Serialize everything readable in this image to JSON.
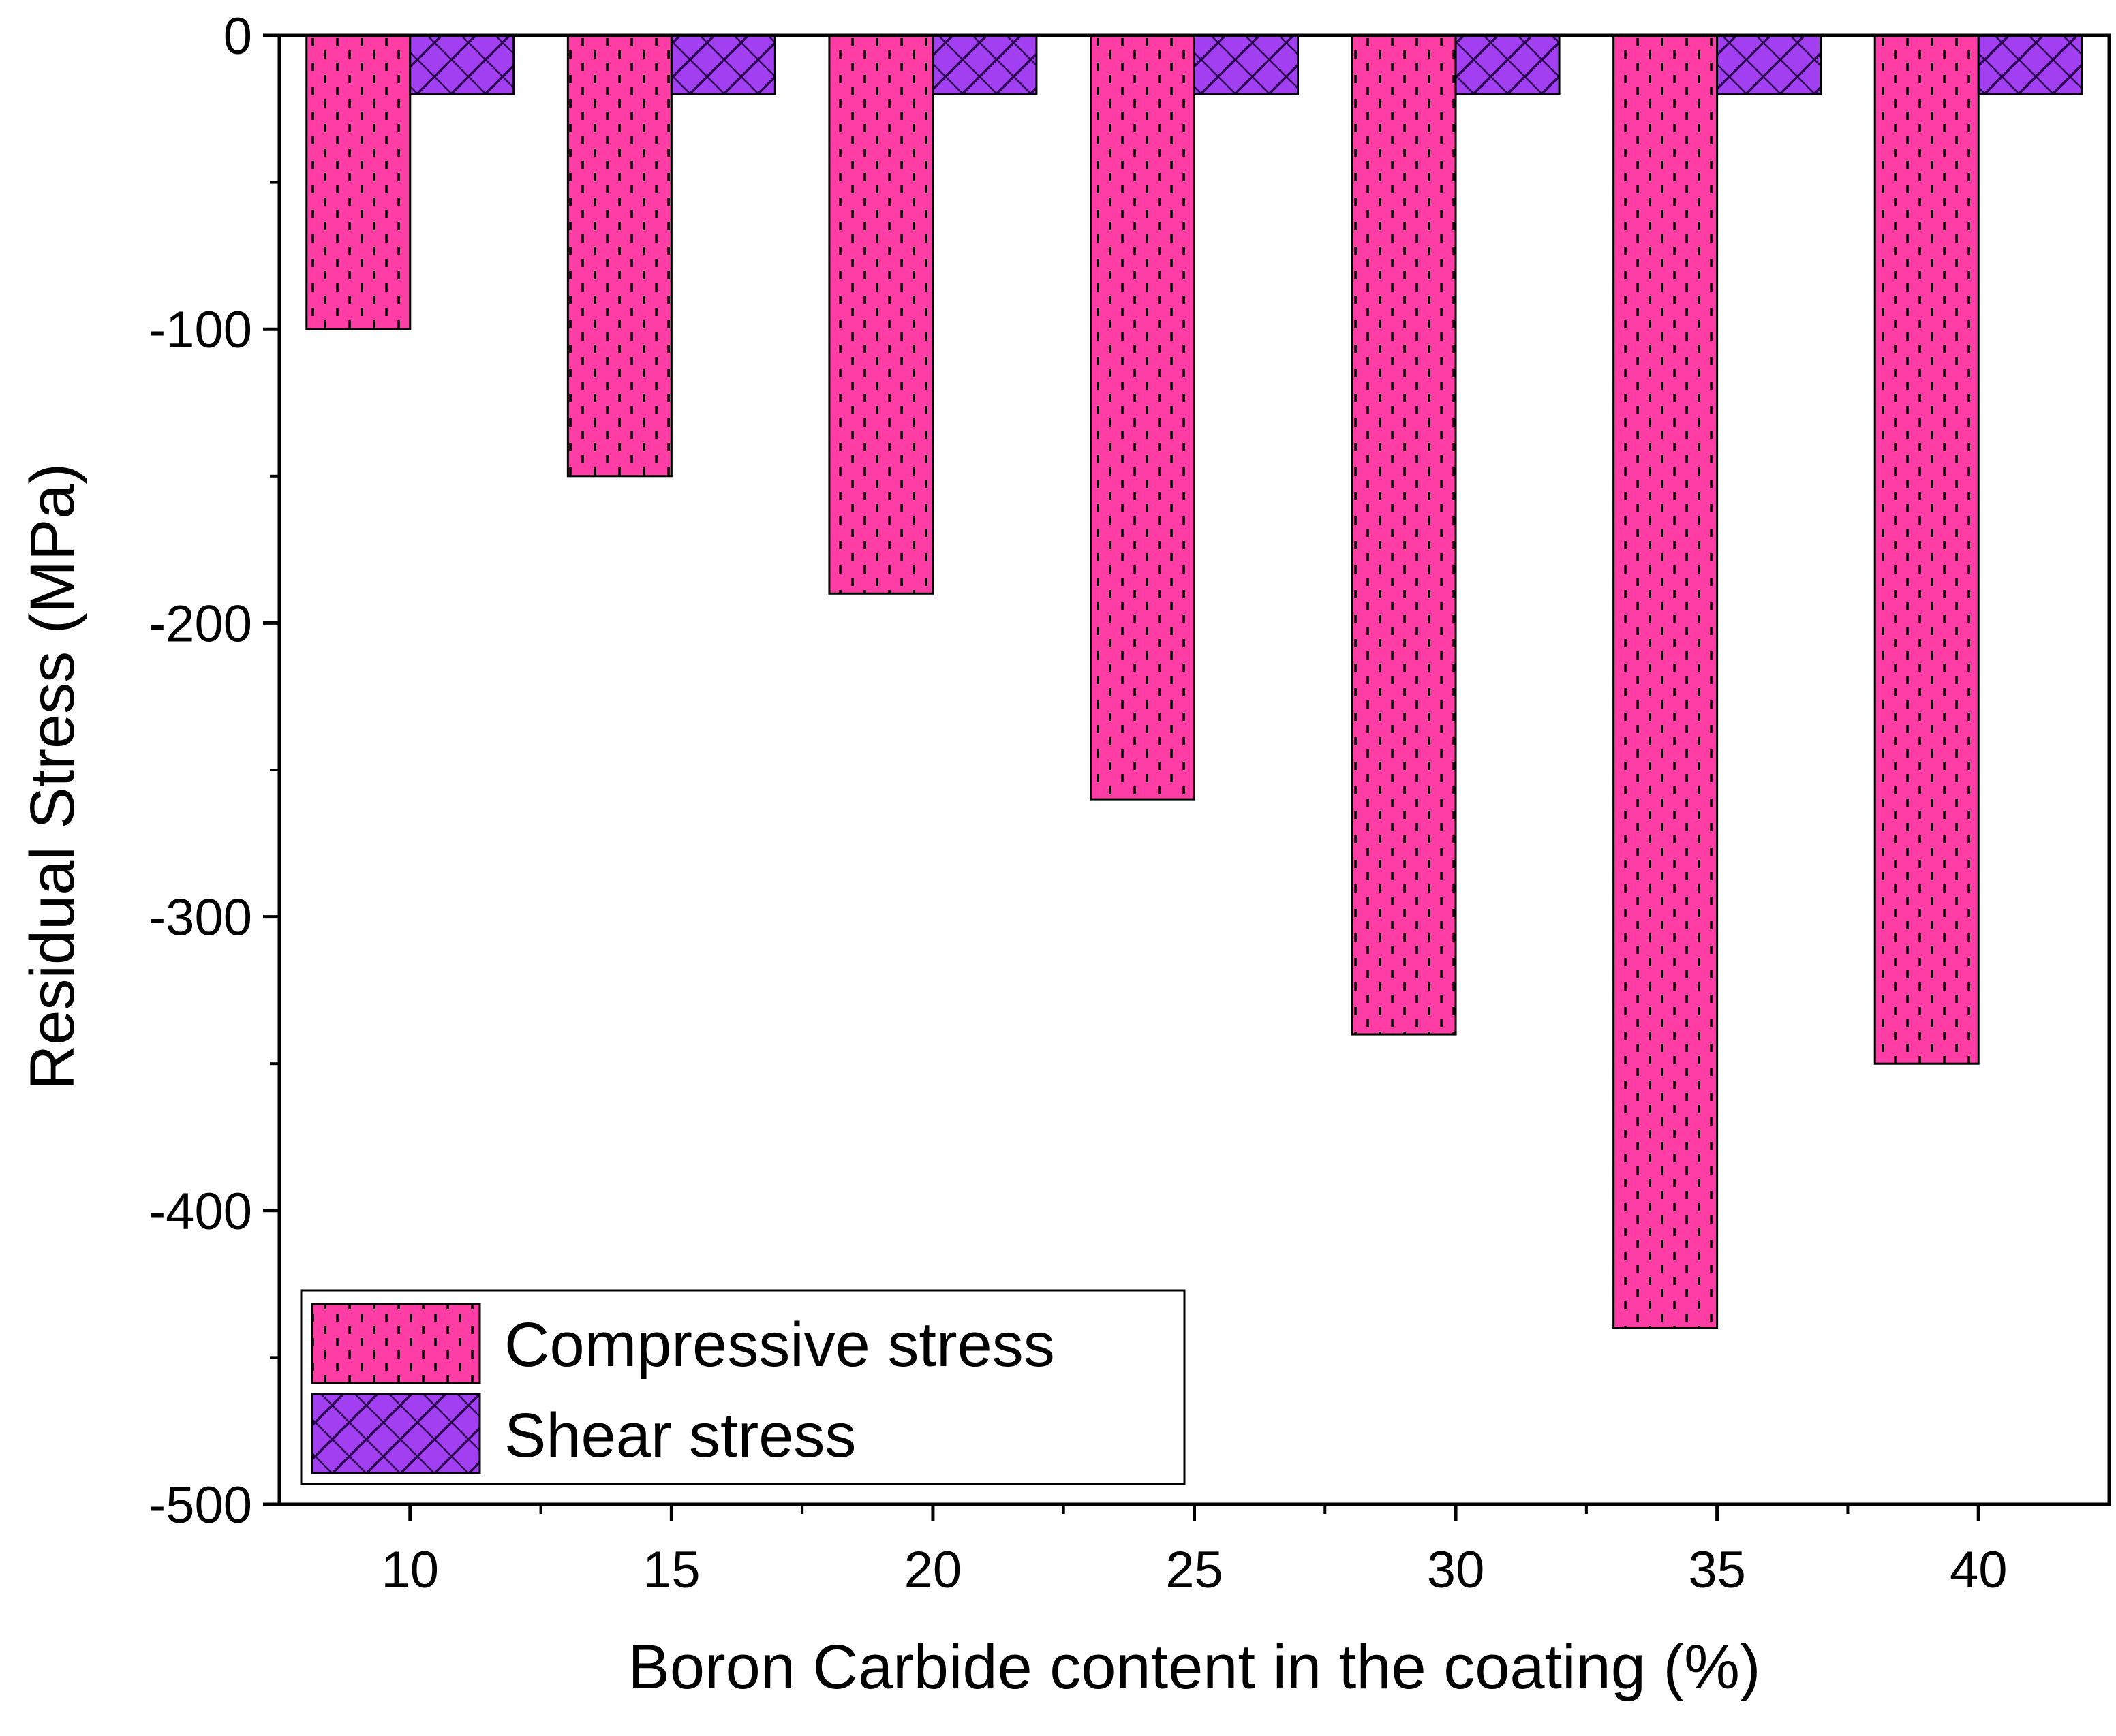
{
  "chart_data": {
    "type": "bar",
    "title": "",
    "xlabel": "Boron Carbide content in the coating (%)",
    "ylabel": "Residual Stress (MPa)",
    "categories": [
      "10",
      "15",
      "20",
      "25",
      "30",
      "35",
      "40"
    ],
    "x": [
      10,
      15,
      20,
      25,
      30,
      35,
      40
    ],
    "xlim": [
      7.5,
      42.5
    ],
    "ylim": [
      -500,
      0
    ],
    "yticks": [
      0,
      -100,
      -200,
      -300,
      -400,
      -500
    ],
    "ytick_labels": [
      "0",
      "-100",
      "-200",
      "-300",
      "-400",
      "-500"
    ],
    "series": [
      {
        "name": "Compressive stress",
        "values": [
          -100,
          -150,
          -190,
          -260,
          -340,
          -440,
          -350
        ],
        "color": "#ff3da5",
        "pattern": "dashes"
      },
      {
        "name": "Shear stress",
        "values": [
          -20,
          -20,
          -20,
          -20,
          -20,
          -20,
          -20
        ],
        "color": "#a23ff0",
        "pattern": "crosshatch"
      }
    ],
    "legend_position": "bottom-left",
    "grid": false
  }
}
